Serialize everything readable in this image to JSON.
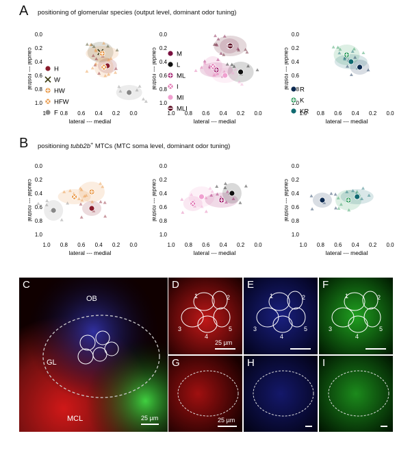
{
  "panelA": {
    "letter": "A",
    "title": "positioning of glomerular species (output level, dominant odor tuning)"
  },
  "panelB": {
    "letter": "B",
    "title_pre": "positioning ",
    "title_gene": "tubb2b",
    "title_sup": "+",
    "title_post": " MTCs (MTC soma level, dominant odor tuning)"
  },
  "axes": {
    "xlabel": "lateral --- medial",
    "ylabel": "caudal --- rostral",
    "xticks": [
      "1.0",
      "0.8",
      "0.6",
      "0.4",
      "0.2",
      "0.0"
    ],
    "yticks": [
      "0.0",
      "0.2",
      "0.4",
      "0.6",
      "0.8",
      "1.0"
    ],
    "xlim": [
      1.0,
      0.0
    ],
    "ylim": [
      0.0,
      1.0
    ]
  },
  "legends": {
    "group1": [
      {
        "label": "H",
        "color": "#8a1c2c",
        "marker": "dot"
      },
      {
        "label": "W",
        "color": "#3a3a10",
        "marker": "x"
      },
      {
        "label": "HW",
        "color": "#e8923c",
        "marker": "plus-ring"
      },
      {
        "label": "HFW",
        "color": "#e8923c",
        "marker": "x-ring"
      },
      {
        "label": "F",
        "color": "#888888",
        "marker": "dot"
      }
    ],
    "group2": [
      {
        "label": "M",
        "color": "#7a1040",
        "marker": "dot"
      },
      {
        "label": "L",
        "color": "#111111",
        "marker": "dot"
      },
      {
        "label": "ML",
        "color": "#a0186a",
        "marker": "plus-ring"
      },
      {
        "label": "I",
        "color": "#e070b0",
        "marker": "x-ring"
      },
      {
        "label": "MI",
        "color": "#f0a0d0",
        "marker": "dot"
      },
      {
        "label": "MLI",
        "color": "#5a0a20",
        "marker": "minus-ring"
      }
    ],
    "group3": [
      {
        "label": "R",
        "color": "#0c2a50",
        "marker": "dot"
      },
      {
        "label": "K",
        "color": "#2a9a5a",
        "marker": "plus-ring"
      },
      {
        "label": "KR",
        "color": "#106a70",
        "marker": "dot"
      }
    ]
  },
  "chart_data": [
    {
      "type": "scatter",
      "panel": "A-1",
      "xlim": [
        1.0,
        0.0
      ],
      "ylim": [
        0.0,
        1.0
      ],
      "means": [
        {
          "name": "H",
          "x": 0.3,
          "y": 0.46
        },
        {
          "name": "W",
          "x": 0.38,
          "y": 0.26
        },
        {
          "name": "HW",
          "x": 0.36,
          "y": 0.28
        },
        {
          "name": "HFW",
          "x": 0.34,
          "y": 0.48
        },
        {
          "name": "F",
          "x": 0.05,
          "y": 0.85
        }
      ]
    },
    {
      "type": "scatter",
      "panel": "A-2",
      "xlim": [
        1.0,
        0.0
      ],
      "ylim": [
        0.0,
        1.0
      ],
      "means": [
        {
          "name": "M",
          "x": 0.33,
          "y": 0.17
        },
        {
          "name": "L",
          "x": 0.2,
          "y": 0.55
        },
        {
          "name": "ML",
          "x": 0.48,
          "y": 0.52
        },
        {
          "name": "I",
          "x": 0.52,
          "y": 0.47
        },
        {
          "name": "MI",
          "x": 0.38,
          "y": 0.6
        },
        {
          "name": "MLI",
          "x": 0.32,
          "y": 0.17
        }
      ]
    },
    {
      "type": "scatter",
      "panel": "A-3",
      "xlim": [
        1.0,
        0.0
      ],
      "ylim": [
        0.0,
        1.0
      ],
      "means": [
        {
          "name": "R",
          "x": 0.35,
          "y": 0.48
        },
        {
          "name": "K",
          "x": 0.5,
          "y": 0.3
        },
        {
          "name": "KR",
          "x": 0.45,
          "y": 0.4
        }
      ]
    },
    {
      "type": "scatter",
      "panel": "B-1",
      "xlim": [
        1.0,
        0.0
      ],
      "ylim": [
        0.0,
        1.0
      ],
      "means": [
        {
          "name": "H",
          "x": 0.48,
          "y": 0.62
        },
        {
          "name": "HW",
          "x": 0.48,
          "y": 0.38
        },
        {
          "name": "HFW",
          "x": 0.68,
          "y": 0.45
        },
        {
          "name": "F",
          "x": 0.92,
          "y": 0.65
        }
      ]
    },
    {
      "type": "scatter",
      "panel": "B-2",
      "xlim": [
        1.0,
        0.0
      ],
      "ylim": [
        0.0,
        1.0
      ],
      "means": [
        {
          "name": "I",
          "x": 0.75,
          "y": 0.55
        },
        {
          "name": "MI",
          "x": 0.65,
          "y": 0.45
        },
        {
          "name": "ML",
          "x": 0.42,
          "y": 0.5
        },
        {
          "name": "L",
          "x": 0.3,
          "y": 0.4
        }
      ]
    },
    {
      "type": "scatter",
      "panel": "B-3",
      "xlim": [
        1.0,
        0.0
      ],
      "ylim": [
        0.0,
        1.0
      ],
      "means": [
        {
          "name": "R",
          "x": 0.78,
          "y": 0.5
        },
        {
          "name": "K",
          "x": 0.48,
          "y": 0.5
        },
        {
          "name": "KR",
          "x": 0.38,
          "y": 0.45
        }
      ]
    }
  ],
  "micro": {
    "C": {
      "letter": "C",
      "ob": "OB",
      "gl": "GL",
      "mcl": "MCL",
      "scale": "25 µm"
    },
    "D": {
      "letter": "D",
      "scale": "25 µm"
    },
    "E": {
      "letter": "E"
    },
    "F": {
      "letter": "F"
    },
    "G": {
      "letter": "G",
      "scale": "25 µm"
    },
    "H": {
      "letter": "H"
    },
    "I": {
      "letter": "I"
    },
    "rois": [
      "1",
      "2",
      "3",
      "4",
      "5"
    ]
  }
}
